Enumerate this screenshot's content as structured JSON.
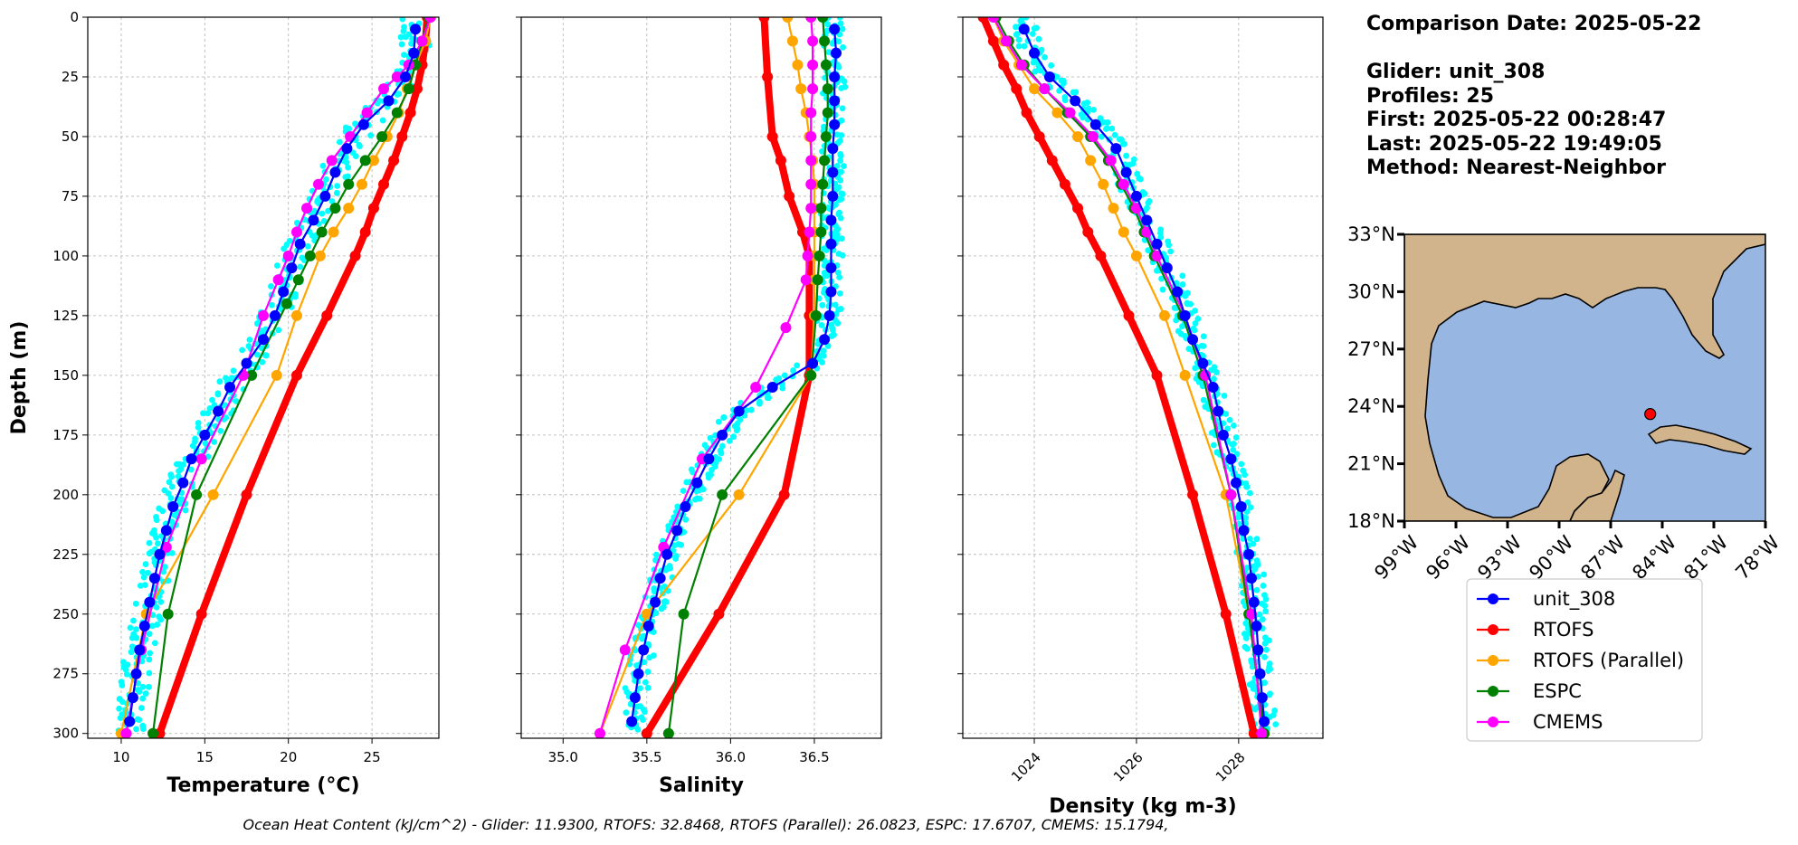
{
  "info": {
    "comparison_date": "Comparison Date: 2025-05-22",
    "glider": "Glider: unit_308",
    "profiles": "Profiles: 25",
    "first": "First: 2025-05-22 00:28:47",
    "last": "Last: 2025-05-22 19:49:05",
    "method": "Method: Nearest-Neighbor"
  },
  "footer_text": "Ocean Heat Content (kJ/cm^2) - Glider: 11.9300,  RTOFS: 32.8468,  RTOFS (Parallel): 26.0823,  ESPC: 17.6707,  CMEMS: 15.1794,",
  "colors": {
    "unit_308": "#0000ff",
    "RTOFS": "#ff0000",
    "RTOFS (Parallel)": "#ffa500",
    "ESPC": "#008000",
    "CMEMS": "#ff00ff",
    "glider_scatter": "#00ffff",
    "ocean": "#97b6e1",
    "land": "#d2b48c",
    "grid": "#b0b0b0"
  },
  "legend": [
    "unit_308",
    "RTOFS",
    "RTOFS (Parallel)",
    "ESPC",
    "CMEMS"
  ],
  "chart_data": [
    {
      "type": "line",
      "xlabel": "Temperature (°C)",
      "ylabel": "Depth (m)",
      "xlim": [
        8,
        29
      ],
      "ylim": [
        302,
        0
      ],
      "xticks": [
        10,
        15,
        20,
        25
      ],
      "yticks": [
        0,
        25,
        50,
        75,
        100,
        125,
        150,
        175,
        200,
        225,
        250,
        275,
        300
      ],
      "grid": true,
      "series": [
        {
          "name": "unit_308",
          "depth": [
            5,
            15,
            25,
            35,
            45,
            55,
            65,
            75,
            85,
            95,
            105,
            115,
            125,
            135,
            145,
            155,
            165,
            175,
            185,
            195,
            205,
            215,
            225,
            235,
            245,
            255,
            265,
            275,
            285,
            295
          ],
          "values": [
            27.6,
            27.5,
            27.0,
            26.0,
            24.5,
            23.5,
            22.8,
            22.2,
            21.5,
            20.7,
            20.2,
            19.7,
            19.2,
            18.5,
            17.5,
            16.5,
            15.8,
            15.0,
            14.2,
            13.7,
            13.1,
            12.7,
            12.3,
            12.0,
            11.7,
            11.4,
            11.1,
            10.9,
            10.7,
            10.5
          ]
        },
        {
          "name": "RTOFS",
          "depth": [
            0,
            10,
            20,
            30,
            40,
            50,
            60,
            70,
            80,
            90,
            100,
            125,
            150,
            200,
            250,
            300
          ],
          "values": [
            28.3,
            28.2,
            28.0,
            27.7,
            27.3,
            26.8,
            26.3,
            25.7,
            25.1,
            24.6,
            24.0,
            22.3,
            20.5,
            17.5,
            14.8,
            12.3
          ]
        },
        {
          "name": "RTOFS (Parallel)",
          "depth": [
            0,
            10,
            20,
            30,
            40,
            50,
            60,
            70,
            80,
            90,
            100,
            125,
            150,
            200,
            250,
            300
          ],
          "values": [
            28.5,
            28.2,
            27.6,
            27.1,
            26.6,
            25.9,
            25.1,
            24.4,
            23.6,
            22.7,
            21.9,
            20.5,
            19.3,
            15.5,
            11.5,
            10.0
          ]
        },
        {
          "name": "ESPC",
          "depth": [
            0,
            10,
            20,
            30,
            40,
            50,
            60,
            70,
            80,
            90,
            100,
            110,
            120,
            150,
            200,
            250,
            300
          ],
          "values": [
            28.4,
            28.0,
            27.6,
            27.2,
            26.5,
            25.6,
            24.6,
            23.6,
            22.8,
            22.0,
            21.3,
            20.6,
            19.9,
            17.8,
            14.5,
            12.8,
            11.9
          ]
        },
        {
          "name": "CMEMS",
          "depth": [
            0,
            10,
            20,
            25,
            30,
            40,
            50,
            60,
            70,
            80,
            90,
            100,
            110,
            125,
            150,
            185,
            222,
            265,
            300
          ],
          "values": [
            28.5,
            28.0,
            27.2,
            26.5,
            25.7,
            24.7,
            23.7,
            22.6,
            21.8,
            21.1,
            20.5,
            20.0,
            19.4,
            18.5,
            17.3,
            14.8,
            12.7,
            11.2,
            10.3
          ]
        }
      ]
    },
    {
      "type": "line",
      "xlabel": "Salinity",
      "xlim": [
        34.75,
        36.9
      ],
      "ylim": [
        302,
        0
      ],
      "xticks": [
        35.0,
        35.5,
        36.0,
        36.5
      ],
      "yticks": [
        0,
        25,
        50,
        75,
        100,
        125,
        150,
        175,
        200,
        225,
        250,
        275,
        300
      ],
      "grid": true,
      "series": [
        {
          "name": "unit_308",
          "depth": [
            5,
            15,
            25,
            35,
            45,
            55,
            65,
            75,
            85,
            95,
            105,
            115,
            125,
            135,
            145,
            155,
            165,
            175,
            185,
            195,
            205,
            215,
            225,
            235,
            245,
            255,
            265,
            275,
            285,
            295
          ],
          "values": [
            36.62,
            36.63,
            36.62,
            36.62,
            36.62,
            36.61,
            36.61,
            36.61,
            36.6,
            36.6,
            36.6,
            36.6,
            36.59,
            36.56,
            36.49,
            36.25,
            36.05,
            35.95,
            35.87,
            35.8,
            35.73,
            35.68,
            35.62,
            35.58,
            35.55,
            35.51,
            35.48,
            35.45,
            35.43,
            35.41
          ]
        },
        {
          "name": "RTOFS",
          "depth": [
            0,
            25,
            50,
            60,
            75,
            90,
            100,
            125,
            150,
            200,
            250,
            300
          ],
          "values": [
            36.2,
            36.22,
            36.25,
            36.3,
            36.35,
            36.43,
            36.47,
            36.47,
            36.47,
            36.32,
            35.93,
            35.5
          ]
        },
        {
          "name": "RTOFS (Parallel)",
          "depth": [
            0,
            10,
            20,
            30,
            40,
            50,
            60,
            70,
            80,
            90,
            100,
            110,
            125,
            150,
            200,
            250,
            300
          ],
          "values": [
            36.34,
            36.37,
            36.4,
            36.42,
            36.45,
            36.47,
            36.49,
            36.5,
            36.5,
            36.5,
            36.5,
            36.5,
            36.5,
            36.48,
            36.05,
            35.5,
            35.22
          ]
        },
        {
          "name": "ESPC",
          "depth": [
            0,
            10,
            20,
            30,
            40,
            50,
            60,
            70,
            80,
            90,
            100,
            110,
            125,
            150,
            200,
            250,
            300
          ],
          "values": [
            36.55,
            36.56,
            36.57,
            36.58,
            36.58,
            36.57,
            36.56,
            36.55,
            36.54,
            36.54,
            36.53,
            36.52,
            36.51,
            36.48,
            35.95,
            35.72,
            35.63
          ]
        },
        {
          "name": "CMEMS",
          "depth": [
            0,
            10,
            20,
            30,
            40,
            50,
            60,
            70,
            80,
            90,
            100,
            110,
            130,
            155,
            185,
            222,
            265,
            300
          ],
          "values": [
            36.48,
            36.49,
            36.49,
            36.49,
            36.48,
            36.48,
            36.48,
            36.48,
            36.48,
            36.47,
            36.46,
            36.45,
            36.33,
            36.15,
            35.83,
            35.6,
            35.37,
            35.22
          ]
        }
      ]
    },
    {
      "type": "line",
      "xlabel": "Density (kg m-3)",
      "xlim": [
        1022.6,
        1029.65
      ],
      "ylim": [
        302,
        0
      ],
      "xticks": [
        1024,
        1026,
        1028
      ],
      "yticks": [
        0,
        25,
        50,
        75,
        100,
        125,
        150,
        175,
        200,
        225,
        250,
        275,
        300
      ],
      "grid": true,
      "series": [
        {
          "name": "unit_308",
          "depth": [
            5,
            15,
            25,
            35,
            45,
            55,
            65,
            75,
            85,
            95,
            105,
            115,
            125,
            135,
            145,
            155,
            165,
            175,
            185,
            195,
            205,
            215,
            225,
            235,
            245,
            255,
            265,
            275,
            285,
            295
          ],
          "values": [
            1023.8,
            1024.0,
            1024.3,
            1024.8,
            1025.2,
            1025.6,
            1025.8,
            1026.0,
            1026.2,
            1026.4,
            1026.6,
            1026.8,
            1026.95,
            1027.1,
            1027.3,
            1027.5,
            1027.6,
            1027.7,
            1027.85,
            1027.95,
            1028.05,
            1028.1,
            1028.2,
            1028.25,
            1028.3,
            1028.35,
            1028.38,
            1028.42,
            1028.46,
            1028.5
          ]
        },
        {
          "name": "RTOFS",
          "depth": [
            0,
            10,
            20,
            30,
            40,
            50,
            60,
            70,
            80,
            90,
            100,
            125,
            150,
            200,
            250,
            300
          ],
          "values": [
            1023.0,
            1023.2,
            1023.4,
            1023.65,
            1023.85,
            1024.1,
            1024.35,
            1024.6,
            1024.85,
            1025.05,
            1025.3,
            1025.85,
            1026.4,
            1027.1,
            1027.75,
            1028.3
          ]
        },
        {
          "name": "RTOFS (Parallel)",
          "depth": [
            0,
            10,
            20,
            30,
            40,
            50,
            60,
            70,
            80,
            90,
            100,
            125,
            150,
            200,
            250,
            300
          ],
          "values": [
            1023.2,
            1023.4,
            1023.7,
            1024.0,
            1024.45,
            1024.85,
            1025.1,
            1025.35,
            1025.55,
            1025.75,
            1026.0,
            1026.55,
            1026.95,
            1027.75,
            1028.2,
            1028.5
          ]
        },
        {
          "name": "ESPC",
          "depth": [
            0,
            10,
            20,
            30,
            40,
            50,
            60,
            70,
            80,
            90,
            100,
            125,
            150,
            200,
            250,
            300
          ],
          "values": [
            1023.25,
            1023.5,
            1023.8,
            1024.2,
            1024.65,
            1025.1,
            1025.45,
            1025.7,
            1025.95,
            1026.15,
            1026.35,
            1026.9,
            1027.3,
            1027.85,
            1028.2,
            1028.5
          ]
        },
        {
          "name": "CMEMS",
          "depth": [
            0,
            10,
            20,
            30,
            40,
            50,
            60,
            70,
            80,
            90,
            100,
            125,
            150,
            200,
            250,
            300
          ],
          "values": [
            1023.2,
            1023.45,
            1023.75,
            1024.2,
            1024.7,
            1025.15,
            1025.5,
            1025.75,
            1026.0,
            1026.2,
            1026.4,
            1026.95,
            1027.35,
            1027.85,
            1028.25,
            1028.45
          ]
        }
      ]
    },
    {
      "type": "map",
      "xticks": [
        "99°W",
        "96°W",
        "93°W",
        "90°W",
        "87°W",
        "84°W",
        "81°W",
        "78°W"
      ],
      "yticks": [
        "33°N",
        "30°N",
        "27°N",
        "24°N",
        "21°N",
        "18°N"
      ],
      "lon_range": [
        -99,
        -78
      ],
      "lat_range": [
        18,
        33
      ],
      "glider_position": {
        "lon": -84.7,
        "lat": 23.6
      }
    }
  ]
}
